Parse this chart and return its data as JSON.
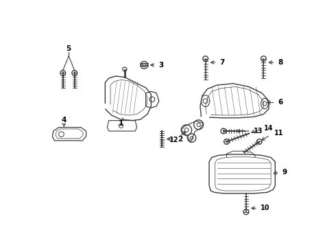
{
  "background_color": "#ffffff",
  "line_color": "#3a3a3a",
  "figsize": [
    4.9,
    3.6
  ],
  "dpi": 100
}
